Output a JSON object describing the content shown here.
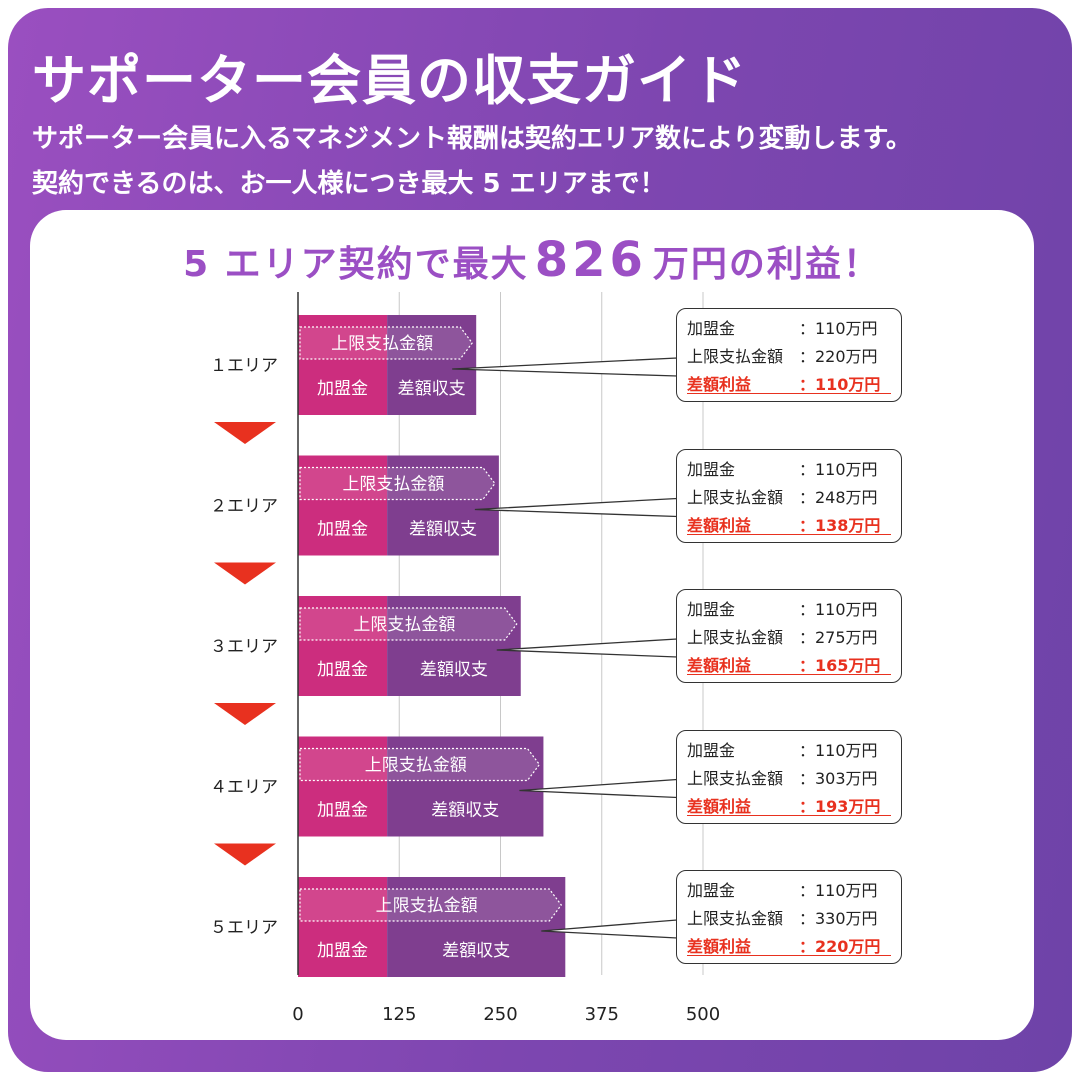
{
  "header": {
    "title": "サポーター会員の収支ガイド",
    "subtitle_line1": "サポーター会員に入るマネジメント報酬は契約エリア数により変動します。",
    "subtitle_line2": "契約できるのは、お一人様につき最大 5 エリアまで！"
  },
  "headline": {
    "prefix": "5 エリア契約で最大",
    "amount": "826",
    "suffix": "万円の利益！"
  },
  "colors": {
    "franchise_fee": "#cc2d7e",
    "difference": "#7f3e8f",
    "arrow": "#e8311f",
    "profit_text": "#e8311f",
    "headline": "#9b4fc4"
  },
  "chart_data": {
    "type": "bar",
    "orientation": "horizontal",
    "stacked": true,
    "unit": "万円",
    "categories": [
      "１エリア",
      "２エリア",
      "３エリア",
      "４エリア",
      "５エリア"
    ],
    "series": [
      {
        "name": "加盟金",
        "values": [
          110,
          110,
          110,
          110,
          110
        ]
      },
      {
        "name": "差額収支",
        "values": [
          110,
          138,
          165,
          193,
          220
        ]
      }
    ],
    "overlay_label": "上限支払金額",
    "upper_payment": [
      220,
      248,
      275,
      303,
      330
    ],
    "xlim": [
      0,
      500
    ],
    "xticks": [
      0,
      125,
      250,
      375,
      500
    ],
    "xtick_labels": [
      "0",
      "125",
      "250",
      "375",
      "500"
    ],
    "grid": true,
    "annotations": [
      {
        "fee_label": "加盟金",
        "fee_value": "：110万円",
        "upper_label": "上限支払金額",
        "upper_value": "：220万円",
        "profit_label": "差額利益",
        "profit_value": "：110万円"
      },
      {
        "fee_label": "加盟金",
        "fee_value": "：110万円",
        "upper_label": "上限支払金額",
        "upper_value": "：248万円",
        "profit_label": "差額利益",
        "profit_value": "：138万円"
      },
      {
        "fee_label": "加盟金",
        "fee_value": "：110万円",
        "upper_label": "上限支払金額",
        "upper_value": "：275万円",
        "profit_label": "差額利益",
        "profit_value": "：165万円"
      },
      {
        "fee_label": "加盟金",
        "fee_value": "：110万円",
        "upper_label": "上限支払金額",
        "upper_value": "：303万円",
        "profit_label": "差額利益",
        "profit_value": "：193万円"
      },
      {
        "fee_label": "加盟金",
        "fee_value": "：110万円",
        "upper_label": "上限支払金額",
        "upper_value": "：330万円",
        "profit_label": "差額利益",
        "profit_value": "：220万円"
      }
    ]
  }
}
